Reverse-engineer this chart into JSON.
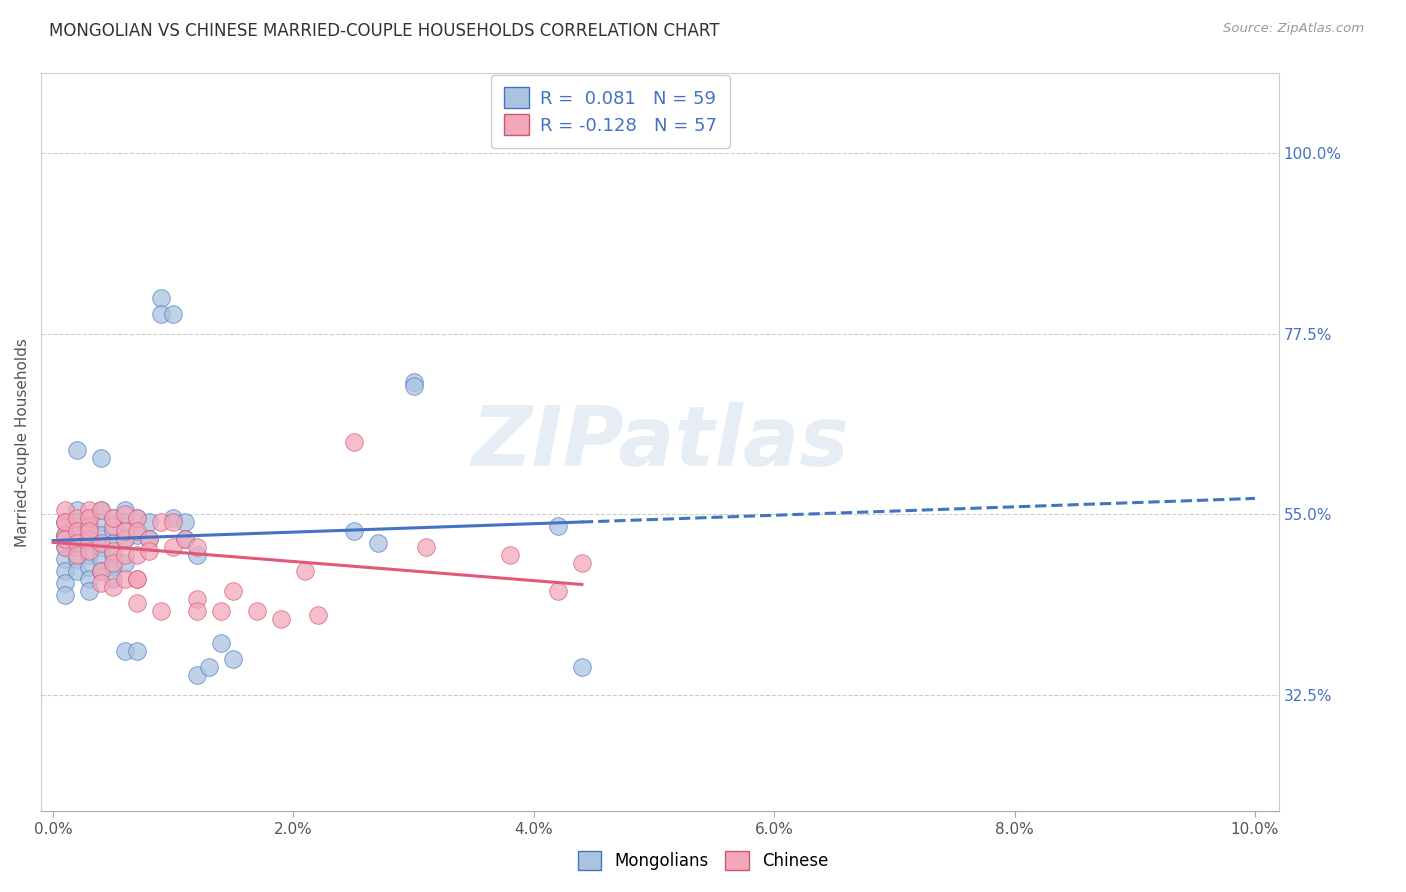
{
  "title": "MONGOLIAN VS CHINESE MARRIED-COUPLE HOUSEHOLDS CORRELATION CHART",
  "source": "Source: ZipAtlas.com",
  "ylabel": "Married-couple Households",
  "ytick_labels": [
    "32.5%",
    "55.0%",
    "77.5%",
    "100.0%"
  ],
  "ytick_values": [
    0.325,
    0.55,
    0.775,
    1.0
  ],
  "legend_mongolian_R": "0.081",
  "legend_mongolian_N": "59",
  "legend_chinese_R": "-0.128",
  "legend_chinese_N": "57",
  "mongolian_color": "#aac4e0",
  "chinese_color": "#f4a7b9",
  "trend_mongolian_color": "#4472c4",
  "trend_chinese_color": "#e05a78",
  "watermark": "ZIPatlas",
  "mongolian_points": [
    [
      0.001,
      0.51
    ],
    [
      0.001,
      0.495
    ],
    [
      0.001,
      0.48
    ],
    [
      0.001,
      0.465
    ],
    [
      0.001,
      0.45
    ],
    [
      0.001,
      0.54
    ],
    [
      0.001,
      0.525
    ],
    [
      0.002,
      0.555
    ],
    [
      0.002,
      0.54
    ],
    [
      0.002,
      0.525
    ],
    [
      0.002,
      0.51
    ],
    [
      0.002,
      0.495
    ],
    [
      0.002,
      0.48
    ],
    [
      0.002,
      0.63
    ],
    [
      0.003,
      0.545
    ],
    [
      0.003,
      0.53
    ],
    [
      0.003,
      0.515
    ],
    [
      0.003,
      0.5
    ],
    [
      0.003,
      0.485
    ],
    [
      0.003,
      0.47
    ],
    [
      0.003,
      0.455
    ],
    [
      0.004,
      0.555
    ],
    [
      0.004,
      0.54
    ],
    [
      0.004,
      0.525
    ],
    [
      0.004,
      0.51
    ],
    [
      0.004,
      0.495
    ],
    [
      0.004,
      0.48
    ],
    [
      0.004,
      0.62
    ],
    [
      0.005,
      0.545
    ],
    [
      0.005,
      0.53
    ],
    [
      0.005,
      0.515
    ],
    [
      0.005,
      0.5
    ],
    [
      0.005,
      0.485
    ],
    [
      0.005,
      0.47
    ],
    [
      0.006,
      0.555
    ],
    [
      0.006,
      0.54
    ],
    [
      0.006,
      0.52
    ],
    [
      0.006,
      0.49
    ],
    [
      0.006,
      0.38
    ],
    [
      0.007,
      0.545
    ],
    [
      0.007,
      0.525
    ],
    [
      0.007,
      0.38
    ],
    [
      0.008,
      0.54
    ],
    [
      0.008,
      0.52
    ],
    [
      0.009,
      0.82
    ],
    [
      0.009,
      0.8
    ],
    [
      0.01,
      0.8
    ],
    [
      0.01,
      0.545
    ],
    [
      0.011,
      0.54
    ],
    [
      0.011,
      0.52
    ],
    [
      0.012,
      0.5
    ],
    [
      0.012,
      0.35
    ],
    [
      0.013,
      0.36
    ],
    [
      0.014,
      0.39
    ],
    [
      0.015,
      0.37
    ],
    [
      0.025,
      0.53
    ],
    [
      0.027,
      0.515
    ],
    [
      0.03,
      0.715
    ],
    [
      0.03,
      0.71
    ],
    [
      0.042,
      0.535
    ],
    [
      0.044,
      0.36
    ]
  ],
  "chinese_points": [
    [
      0.001,
      0.54
    ],
    [
      0.001,
      0.525
    ],
    [
      0.001,
      0.51
    ],
    [
      0.001,
      0.555
    ],
    [
      0.001,
      0.54
    ],
    [
      0.001,
      0.52
    ],
    [
      0.002,
      0.545
    ],
    [
      0.002,
      0.53
    ],
    [
      0.002,
      0.515
    ],
    [
      0.002,
      0.5
    ],
    [
      0.003,
      0.555
    ],
    [
      0.003,
      0.535
    ],
    [
      0.003,
      0.52
    ],
    [
      0.003,
      0.505
    ],
    [
      0.003,
      0.545
    ],
    [
      0.003,
      0.53
    ],
    [
      0.004,
      0.515
    ],
    [
      0.004,
      0.48
    ],
    [
      0.004,
      0.465
    ],
    [
      0.004,
      0.555
    ],
    [
      0.005,
      0.535
    ],
    [
      0.005,
      0.505
    ],
    [
      0.005,
      0.49
    ],
    [
      0.005,
      0.46
    ],
    [
      0.005,
      0.545
    ],
    [
      0.006,
      0.52
    ],
    [
      0.006,
      0.5
    ],
    [
      0.006,
      0.47
    ],
    [
      0.006,
      0.55
    ],
    [
      0.006,
      0.53
    ],
    [
      0.007,
      0.5
    ],
    [
      0.007,
      0.47
    ],
    [
      0.007,
      0.545
    ],
    [
      0.007,
      0.53
    ],
    [
      0.007,
      0.47
    ],
    [
      0.007,
      0.44
    ],
    [
      0.008,
      0.52
    ],
    [
      0.008,
      0.505
    ],
    [
      0.009,
      0.54
    ],
    [
      0.009,
      0.43
    ],
    [
      0.01,
      0.54
    ],
    [
      0.01,
      0.51
    ],
    [
      0.011,
      0.52
    ],
    [
      0.012,
      0.51
    ],
    [
      0.012,
      0.445
    ],
    [
      0.012,
      0.43
    ],
    [
      0.014,
      0.43
    ],
    [
      0.015,
      0.455
    ],
    [
      0.017,
      0.43
    ],
    [
      0.019,
      0.42
    ],
    [
      0.021,
      0.48
    ],
    [
      0.022,
      0.425
    ],
    [
      0.025,
      0.64
    ],
    [
      0.031,
      0.51
    ],
    [
      0.038,
      0.5
    ],
    [
      0.042,
      0.455
    ],
    [
      0.044,
      0.49
    ]
  ]
}
